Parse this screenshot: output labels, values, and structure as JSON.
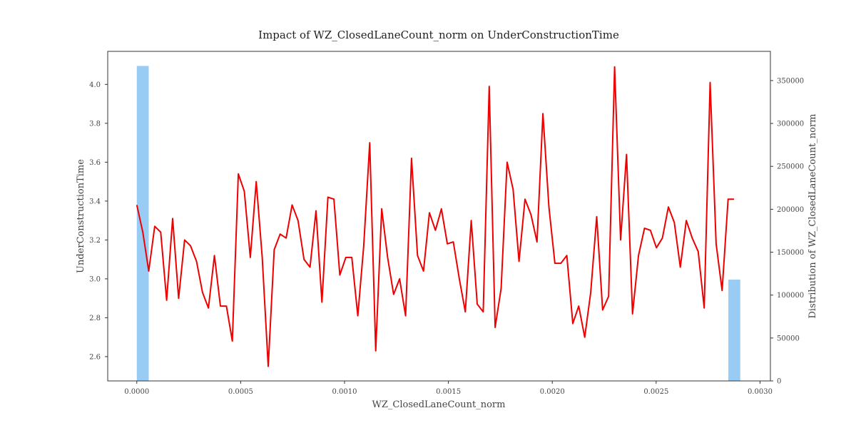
{
  "chart_data": {
    "type": "line",
    "title": "Impact of WZ_ClosedLaneCount_norm on UnderConstructionTime",
    "xlabel": "WZ_ClosedLaneCount_norm",
    "ylabel": "UnderConstructionTime",
    "y2label": "Distribution of WZ_ClosedLaneCount_norm",
    "xlim": [
      -0.00014,
      0.00305
    ],
    "ylim": [
      2.475,
      4.17
    ],
    "y2lim": [
      0,
      384000
    ],
    "x_ticks": [
      0.0,
      0.0005,
      0.001,
      0.0015,
      0.002,
      0.0025,
      0.003
    ],
    "x_tick_labels": [
      "0.0000",
      "0.0005",
      "0.0010",
      "0.0015",
      "0.0020",
      "0.0025",
      "0.0030"
    ],
    "y_ticks": [
      2.6,
      2.8,
      3.0,
      3.2,
      3.4,
      3.6,
      3.8,
      4.0
    ],
    "y_tick_labels": [
      "2.6",
      "2.8",
      "3.0",
      "3.2",
      "3.4",
      "3.6",
      "3.8",
      "4.0"
    ],
    "y2_ticks": [
      0,
      50000,
      100000,
      150000,
      200000,
      250000,
      300000,
      350000
    ],
    "y2_tick_labels": [
      "0",
      "50000",
      "100000",
      "150000",
      "200000",
      "250000",
      "300000",
      "350000"
    ],
    "grid": false,
    "colors": {
      "line": "#ee0000",
      "bars": "#99ccf5"
    },
    "histogram": [
      {
        "x0": 0.0,
        "x1": 5.75e-05,
        "count": 367000
      },
      {
        "x0": 0.0028475,
        "x1": 0.002905,
        "count": 118000
      }
    ],
    "series": [
      {
        "x": [
          0.0,
          2.88e-05,
          5.75e-05,
          8.63e-05,
          0.000115,
          0.0001438,
          0.0001725,
          0.0002013,
          0.00023,
          0.0002588,
          0.0002875,
          0.0003163,
          0.000345,
          0.0003738,
          0.0004025,
          0.0004313,
          0.00046,
          0.0004888,
          0.0005175,
          0.0005463,
          0.000575,
          0.0006038,
          0.0006325,
          0.0006613,
          0.00069,
          0.0007188,
          0.0007475,
          0.0007763,
          0.000805,
          0.0008338,
          0.0008625,
          0.0008913,
          0.00092,
          0.0009488,
          0.0009775,
          0.0010063,
          0.001035,
          0.0010638,
          0.0010925,
          0.0011213,
          0.00115,
          0.0011788,
          0.0012075,
          0.0012363,
          0.001265,
          0.0012938,
          0.0013225,
          0.0013513,
          0.00138,
          0.0014088,
          0.0014375,
          0.0014663,
          0.001495,
          0.0015238,
          0.0015525,
          0.0015813,
          0.00161,
          0.0016388,
          0.0016675,
          0.0016963,
          0.001725,
          0.0017538,
          0.0017825,
          0.0018113,
          0.00184,
          0.0018688,
          0.0018975,
          0.0019263,
          0.001955,
          0.0019838,
          0.0020125,
          0.0020413,
          0.00207,
          0.0020988,
          0.0021275,
          0.0021563,
          0.002185,
          0.0022138,
          0.0022425,
          0.0022713,
          0.0023,
          0.0023288,
          0.0023575,
          0.0023863,
          0.002415,
          0.0024438,
          0.0024725,
          0.0025013,
          0.00253,
          0.0025588,
          0.0025875,
          0.0026163,
          0.002645,
          0.0026738,
          0.0027025,
          0.0027313,
          0.00276,
          0.0027888,
          0.0028175,
          0.0028463,
          0.002875
        ],
        "y": [
          3.38,
          3.24,
          3.04,
          3.27,
          3.24,
          2.89,
          3.31,
          2.9,
          3.2,
          3.17,
          3.09,
          2.93,
          2.85,
          3.12,
          2.86,
          2.86,
          2.68,
          3.54,
          3.45,
          3.11,
          3.5,
          3.11,
          2.55,
          3.15,
          3.23,
          3.21,
          3.38,
          3.3,
          3.1,
          3.06,
          3.35,
          2.88,
          3.42,
          3.41,
          3.02,
          3.11,
          3.11,
          2.81,
          3.17,
          3.7,
          2.63,
          3.36,
          3.11,
          2.92,
          3.0,
          2.81,
          3.62,
          3.12,
          3.04,
          3.34,
          3.25,
          3.36,
          3.18,
          3.19,
          3.0,
          2.83,
          3.3,
          2.87,
          2.83,
          3.99,
          2.75,
          2.95,
          3.6,
          3.46,
          3.09,
          3.41,
          3.33,
          3.19,
          3.85,
          3.37,
          3.08,
          3.08,
          3.12,
          2.77,
          2.86,
          2.7,
          2.93,
          3.32,
          2.84,
          2.91,
          4.09,
          3.2,
          3.64,
          2.82,
          3.12,
          3.26,
          3.25,
          3.16,
          3.21,
          3.37,
          3.29,
          3.06,
          3.3,
          3.21,
          3.14,
          2.85,
          4.01,
          3.18,
          2.94,
          3.41,
          3.41
        ]
      }
    ]
  }
}
